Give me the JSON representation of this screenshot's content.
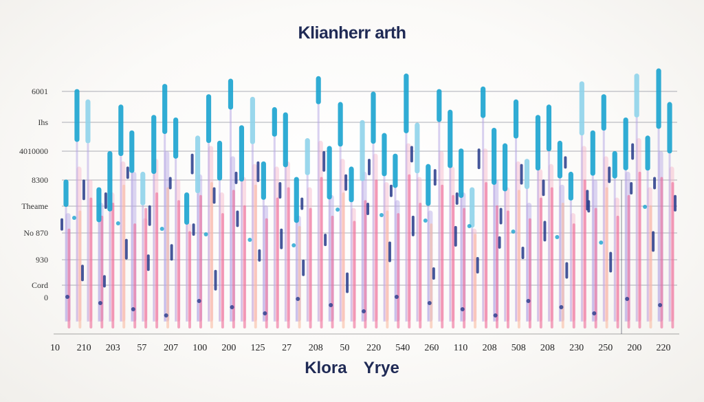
{
  "chart_data": {
    "type": "bar",
    "title": "Klianherr arth",
    "xlabel": "Klora  Yrye",
    "ylabel": "",
    "y_tick_labels": [
      "6001",
      "Ihs",
      "4010000",
      "8300",
      "Theame",
      "No 870",
      "930",
      "Cord",
      "0"
    ],
    "x_tick_labels": [
      "10",
      "210",
      "203",
      "57",
      "207",
      "100",
      "200",
      "125",
      "27",
      "208",
      "50",
      "220",
      "540",
      "260",
      "110",
      "208",
      "508",
      "208",
      "230",
      "250",
      "200",
      "220"
    ],
    "ylim": [
      0,
      100
    ],
    "grid": true,
    "colors": {
      "title": "#1f2a55",
      "cyan": "#1aa3cf",
      "light_cyan": "#8fd3ea",
      "navy": "#263a8a",
      "lavender": "#b4a4e4",
      "pink": "#ec5f8f",
      "light_pink": "#f6b3c8",
      "peach": "#f9b79a"
    },
    "values": [
      55,
      90,
      86,
      52,
      66,
      84,
      74,
      58,
      80,
      92,
      79,
      50,
      72,
      88,
      70,
      94,
      76,
      87,
      62,
      83,
      81,
      56,
      71,
      95,
      68,
      85,
      60,
      78,
      89,
      73,
      65,
      96,
      77,
      61,
      90,
      82,
      67,
      52,
      91,
      75,
      69,
      86,
      63,
      80,
      84,
      70,
      58,
      93,
      74,
      88,
      66,
      79,
      96,
      72,
      98,
      85
    ],
    "overlay_values": [
      42,
      60,
      55,
      46,
      50,
      62,
      58,
      40,
      63,
      66,
      55,
      38,
      57,
      68,
      50,
      64,
      56,
      61,
      45,
      60,
      62,
      41,
      52,
      70,
      49,
      63,
      44,
      58,
      65,
      54,
      47,
      69,
      56,
      43,
      66,
      60,
      50,
      36,
      67,
      55,
      52,
      62,
      46,
      59,
      61,
      53,
      42,
      68,
      55,
      64,
      48,
      58,
      71,
      52,
      66,
      60
    ],
    "pink_values": [
      28,
      35,
      40,
      33,
      38,
      45,
      30,
      36,
      42,
      44,
      39,
      27,
      41,
      46,
      34,
      43,
      37,
      45,
      32,
      40,
      44,
      29,
      36,
      48,
      33,
      42,
      31,
      39,
      47,
      35,
      34,
      49,
      38,
      30,
      45,
      41,
      36,
      26,
      46,
      37,
      35,
      43,
      32,
      40,
      44,
      38,
      30,
      47,
      36,
      44,
      33,
      41,
      50,
      37,
      48,
      46
    ],
    "navy_values": [
      30,
      12,
      45,
      8,
      40,
      22,
      50,
      16,
      35,
      46,
      20,
      55,
      28,
      42,
      10,
      48,
      33,
      52,
      18,
      44,
      26,
      38,
      14,
      56,
      24,
      47,
      9,
      36,
      53,
      21,
      43,
      58,
      31,
      11,
      49,
      27,
      40,
      15,
      57,
      23,
      34,
      51,
      19,
      45,
      29,
      54,
      13,
      41,
      37,
      50,
      17,
      44,
      59,
      25,
      46,
      39
    ]
  }
}
